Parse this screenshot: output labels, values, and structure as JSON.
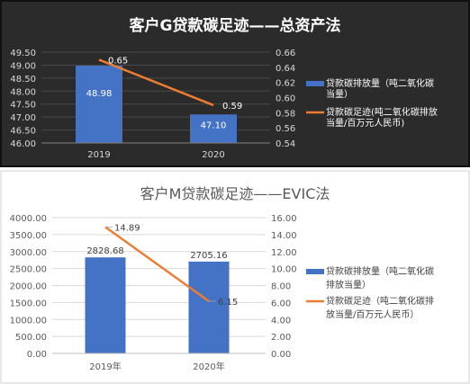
{
  "chart_data": [
    {
      "type": "bar",
      "title": "客户G贷款碳足迹——总资产法",
      "categories": [
        "2019",
        "2020"
      ],
      "series": [
        {
          "name": "贷款碳排放量（吨二氧化碳当量）",
          "type": "bar",
          "axis": "left",
          "values": [
            48.98,
            47.1
          ],
          "labels": [
            "48.98",
            "47.10"
          ],
          "color": "#4472c4"
        },
        {
          "name": "贷款碳足迹(吨二氧化碳排放当量/百万元人民币)",
          "type": "line",
          "axis": "right",
          "values": [
            0.65,
            0.59
          ],
          "labels": [
            "0.65",
            "0.59"
          ],
          "color": "#ed7d31"
        }
      ],
      "y_left": {
        "min": 46.0,
        "max": 49.5,
        "ticks": [
          "49.50",
          "49.00",
          "48.50",
          "48.00",
          "47.50",
          "47.00",
          "46.50",
          "46.00"
        ]
      },
      "y_right": {
        "min": 0.54,
        "max": 0.66,
        "ticks": [
          "0.66",
          "0.64",
          "0.62",
          "0.60",
          "0.58",
          "0.56",
          "0.54"
        ]
      },
      "legend": {
        "position": "right",
        "lines": [
          [
            "贷款碳排放量（吨二氧化碳",
            "当量）"
          ],
          [
            "贷款碳足迹(吨二氧化碳排放",
            "当量/百万元人民币)"
          ]
        ]
      },
      "background": "#2b2b2b"
    },
    {
      "type": "bar",
      "title": "客户M贷款碳足迹——EVIC法",
      "categories": [
        "2019年",
        "2020年"
      ],
      "series": [
        {
          "name": "贷款碳排放量（吨二氧化碳排放当量）",
          "type": "bar",
          "axis": "left",
          "values": [
            2828.68,
            2705.16
          ],
          "labels": [
            "2828.68",
            "2705.16"
          ],
          "color": "#4472c4"
        },
        {
          "name": "贷款碳足迹（吨二氧化碳排放当量/百万元人民币）",
          "type": "line",
          "axis": "right",
          "values": [
            14.89,
            6.15
          ],
          "labels": [
            "14.89",
            "6.15"
          ],
          "color": "#ed7d31"
        }
      ],
      "y_left": {
        "min": 0,
        "max": 4000,
        "ticks": [
          "4000.00",
          "3500.00",
          "3000.00",
          "2500.00",
          "2000.00",
          "1500.00",
          "1000.00",
          "500.00",
          "0.00"
        ]
      },
      "y_right": {
        "min": 0,
        "max": 16,
        "ticks": [
          "16.00",
          "14.00",
          "12.00",
          "10.00",
          "8.00",
          "6.00",
          "4.00",
          "2.00",
          "0.00"
        ]
      },
      "legend": {
        "position": "right",
        "lines": [
          [
            "贷款碳排放量（吨二氧化碳",
            "排放当量）"
          ],
          [
            "贷款碳足迹（吨二氧化碳排",
            "放当量/百万元人民币）"
          ]
        ]
      },
      "background": "#ffffff"
    }
  ]
}
